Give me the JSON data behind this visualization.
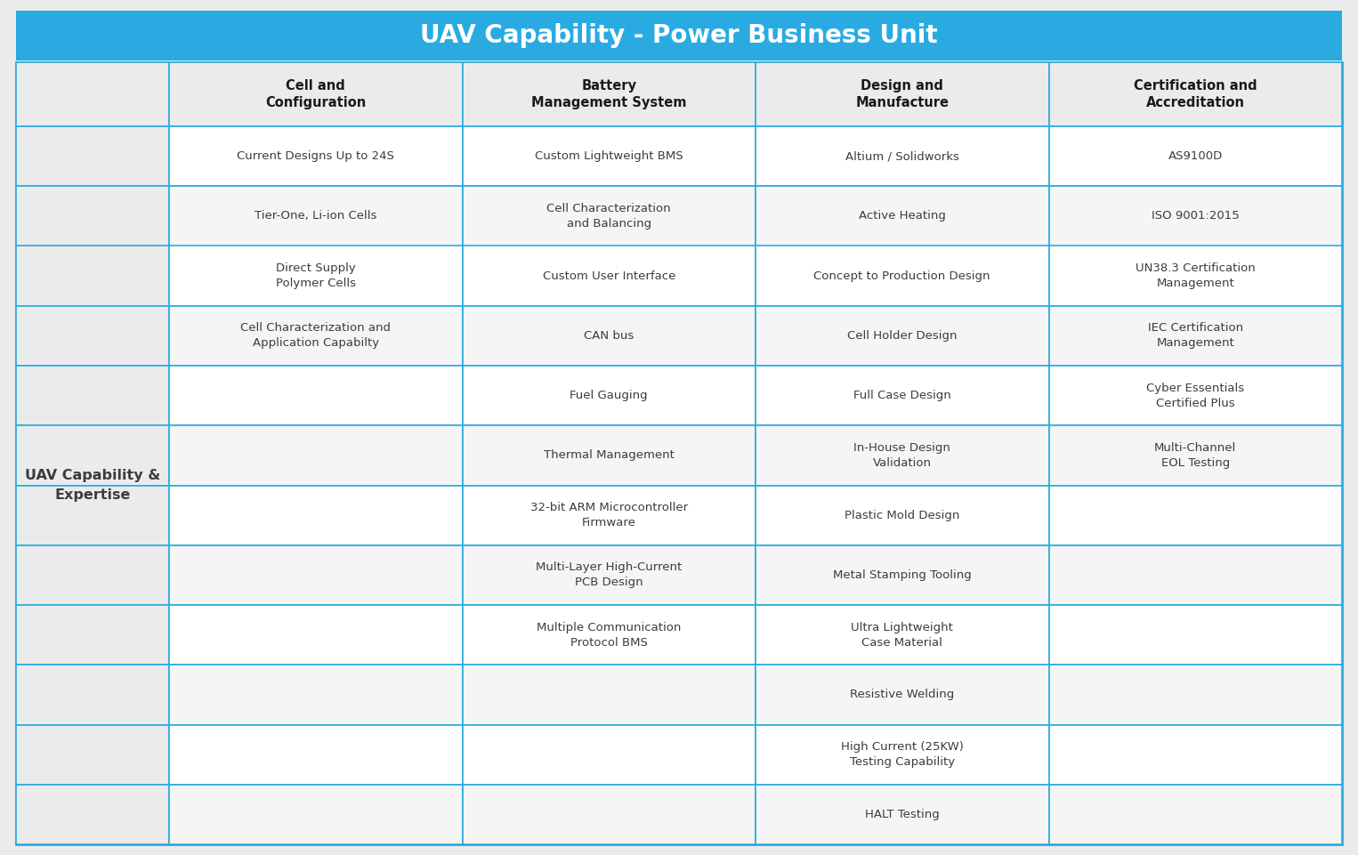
{
  "title": "UAV Capability - Power Business Unit",
  "title_bg": "#29ABE2",
  "title_color": "#FFFFFF",
  "table_bg": "#EBEBEB",
  "cell_bg_even": "#FFFFFF",
  "cell_bg_odd": "#F5F5F5",
  "left_col_bg": "#EBEBEB",
  "border_color": "#29ABE2",
  "text_color": "#3C3C3C",
  "header_text_color": "#1A1A1A",
  "left_label": "UAV Capability &\nExpertise",
  "columns": [
    "Cell and\nConfiguration",
    "Battery\nManagement System",
    "Design and\nManufacture",
    "Certification and\nAccreditation"
  ],
  "rows": [
    [
      "Current Designs Up to 24S",
      "Custom Lightweight BMS",
      "Altium / Solidworks",
      "AS9100D"
    ],
    [
      "Tier-One, Li-ion Cells",
      "Cell Characterization\nand Balancing",
      "Active Heating",
      "ISO 9001:2015"
    ],
    [
      "Direct Supply\nPolymer Cells",
      "Custom User Interface",
      "Concept to Production Design",
      "UN38.3 Certification\nManagement"
    ],
    [
      "Cell Characterization and\nApplication Capabilty",
      "CAN bus",
      "Cell Holder Design",
      "IEC Certification\nManagement"
    ],
    [
      "",
      "Fuel Gauging",
      "Full Case Design",
      "Cyber Essentials\nCertified Plus"
    ],
    [
      "",
      "Thermal Management",
      "In-House Design\nValidation",
      "Multi-Channel\nEOL Testing"
    ],
    [
      "",
      "32-bit ARM Microcontroller\nFirmware",
      "Plastic Mold Design",
      ""
    ],
    [
      "",
      "Multi-Layer High-Current\nPCB Design",
      "Metal Stamping Tooling",
      ""
    ],
    [
      "",
      "Multiple Communication\nProtocol BMS",
      "Ultra Lightweight\nCase Material",
      ""
    ],
    [
      "",
      "",
      "Resistive Welding",
      ""
    ],
    [
      "",
      "",
      "High Current (25KW)\nTesting Capability",
      ""
    ],
    [
      "",
      "",
      "HALT Testing",
      ""
    ]
  ],
  "fig_width": 15.26,
  "fig_height": 9.61,
  "dpi": 100
}
